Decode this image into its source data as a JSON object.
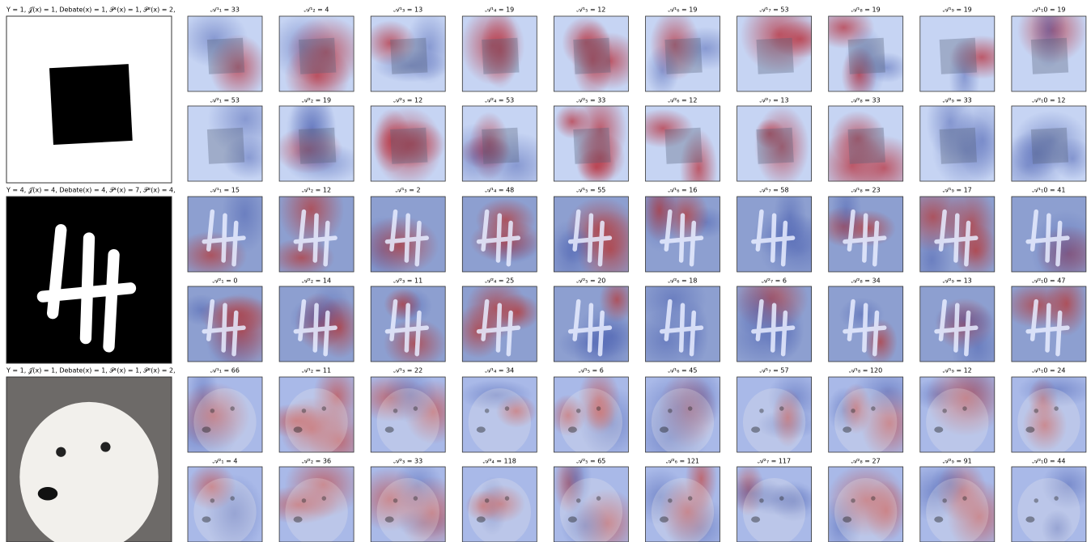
{
  "groups": [
    {
      "header": "Y = 1, 𝒥(x) = 1, Debate(x) = 1, 𝒫¹(x) = 1, 𝒫²(x) = 2,",
      "rows": [
        [
          "𝒜¹₁ = 33",
          "𝒜¹₂ = 4",
          "𝒜¹₃ = 13",
          "𝒜¹₄ = 19",
          "𝒜¹₅ = 12",
          "𝒜¹₆ = 19",
          "𝒜¹₇ = 53",
          "𝒜¹₈ = 19",
          "𝒜¹₉ = 19",
          "𝒜¹₁0 = 19"
        ],
        [
          "𝒜²₁ = 53",
          "𝒜²₂ = 19",
          "𝒜²₃ = 12",
          "𝒜²₄ = 53",
          "𝒜²₅ = 33",
          "𝒜²₆ = 12",
          "𝒜²₇ = 13",
          "𝒜²₈ = 33",
          "𝒜²₉ = 33",
          "𝒜²₁0 = 12"
        ]
      ]
    },
    {
      "header": "Y = 4, 𝒥(x) = 4, Debate(x) = 4, 𝒫¹(x) = 7, 𝒫²(x) = 4,",
      "rows": [
        [
          "𝒜¹₁ = 15",
          "𝒜¹₂ = 12",
          "𝒜¹₃ = 2",
          "𝒜¹₄ = 48",
          "𝒜¹₅ = 55",
          "𝒜¹₆ = 16",
          "𝒜¹₇ = 58",
          "𝒜¹₈ = 23",
          "𝒜¹₉ = 17",
          "𝒜¹₁0 = 41"
        ],
        [
          "𝒜²₁ = 0",
          "𝒜²₂ = 14",
          "𝒜²₃ = 11",
          "𝒜²₄ = 25",
          "𝒜²₅ = 20",
          "𝒜²₆ = 18",
          "𝒜²₇ = 6",
          "𝒜²₈ = 34",
          "𝒜²₉ = 13",
          "𝒜²₁0 = 47"
        ]
      ]
    },
    {
      "header": "Y = 1, 𝒥(x) = 1, Debate(x) = 1, 𝒫¹(x) = 1, 𝒫²(x) = 2,",
      "rows": [
        [
          "𝒜¹₁ = 66",
          "𝒜¹₂ = 11",
          "𝒜¹₃ = 22",
          "𝒜¹₄ = 34",
          "𝒜¹₅ = 6",
          "𝒜¹₆ = 45",
          "𝒜¹₇ = 57",
          "𝒜¹₈ = 120",
          "𝒜¹₉ = 12",
          "𝒜¹₁0 = 24"
        ],
        [
          "𝒜²₁ = 4",
          "𝒜²₂ = 36",
          "𝒜²₃ = 33",
          "𝒜²₄ = 118",
          "𝒜²₅ = 65",
          "𝒜²₆ = 121",
          "𝒜²₇ = 117",
          "𝒜²₈ = 27",
          "𝒜²₉ = 91",
          "𝒜²₁0 = 44"
        ]
      ]
    }
  ]
}
